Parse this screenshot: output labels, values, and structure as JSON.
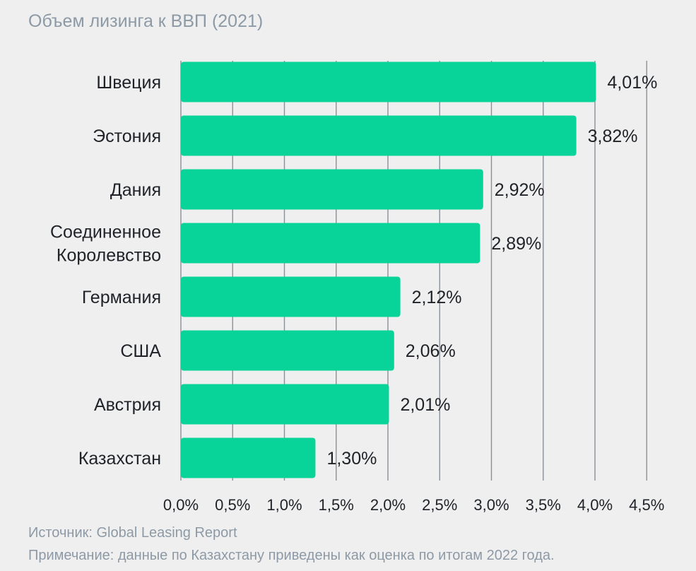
{
  "title": "Объем лизинга к ВВП (2021)",
  "colors": {
    "bar": "#08d49a",
    "grid": "#8a9096",
    "text": "#1f2328",
    "muted": "#8d9aa6",
    "background": "#efefef"
  },
  "chart_data": {
    "type": "bar",
    "orientation": "horizontal",
    "title": "Объем лизинга к ВВП (2021)",
    "xlabel": "",
    "ylabel": "",
    "categories": [
      [
        "Швеция"
      ],
      [
        "Эстония"
      ],
      [
        "Дания"
      ],
      [
        "Соединенное",
        "Королевство"
      ],
      [
        "Германия"
      ],
      [
        "США"
      ],
      [
        "Австрия"
      ],
      [
        "Казахстан"
      ]
    ],
    "values": [
      4.01,
      3.82,
      2.92,
      2.89,
      2.12,
      2.06,
      2.01,
      1.3
    ],
    "value_labels": [
      "4,01%",
      "3,82%",
      "2,92%",
      "2,89%",
      "2,12%",
      "2,06%",
      "2,01%",
      "1,30%"
    ],
    "xlim": [
      0,
      4.5
    ],
    "xticks": [
      0,
      0.5,
      1.0,
      1.5,
      2.0,
      2.5,
      3.0,
      3.5,
      4.0,
      4.5
    ],
    "xtick_labels": [
      "0,0%",
      "0,5%",
      "1,0%",
      "1,5%",
      "2,0%",
      "2,5%",
      "3,0%",
      "3,5%",
      "4,0%",
      "4,5%"
    ],
    "grid": true,
    "legend": "none"
  },
  "footer": {
    "source": "Источник: Global Leasing Report",
    "note": "Примечание: данные по Казахстану приведены как оценка по итогам 2022 года."
  }
}
